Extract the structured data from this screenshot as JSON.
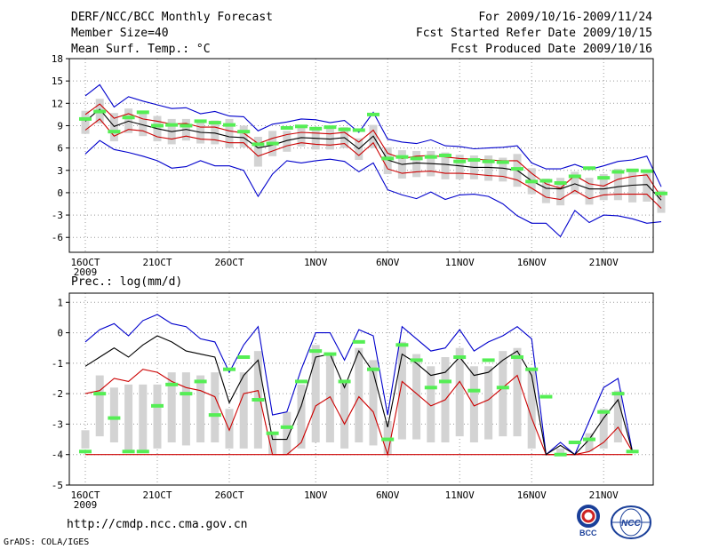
{
  "header": {
    "title": "DERF/NCC/BCC Monthly Forecast",
    "member_size": "Member Size=40",
    "variable": "Mean Surf. Temp.: °C",
    "period": "For 2009/10/16-2009/11/24",
    "start_date": "Fcst Started Refer Date 2009/10/15",
    "produced_date": "Fcst Produced Date 2009/10/16"
  },
  "footer": {
    "url": "http://cmdp.ncc.cma.gov.cn",
    "grads": "GrADS: COLA/IGES",
    "logo_left_text": "BCC",
    "logo_right_text": "NCC"
  },
  "colors": {
    "max": "#0000cc",
    "min": "#0000cc",
    "upper": "#cc0000",
    "lower": "#cc0000",
    "mean": "#000000",
    "bar": "#d3d3d3",
    "obs": "#55ee55"
  },
  "chart_data": [
    {
      "type": "line",
      "title": "Mean Surf. Temp.: °C",
      "x_tick_labels": [
        "16OCT",
        "21OCT",
        "26OCT",
        "1NOV",
        "6NOV",
        "11NOV",
        "16NOV",
        "21NOV"
      ],
      "x_tick_days": [
        0,
        5,
        10,
        16,
        21,
        26,
        31,
        36
      ],
      "x_year_label": "2009",
      "ylim": [
        -8,
        18
      ],
      "yticks": [
        -6,
        -3,
        0,
        3,
        6,
        9,
        12,
        15,
        18
      ],
      "series": [
        {
          "name": "max",
          "values": [
            13,
            14.5,
            11.5,
            12.9,
            12.3,
            11.8,
            11.3,
            11.4,
            10.6,
            10.9,
            10.3,
            10.2,
            8.3,
            9.2,
            9.5,
            9.9,
            9.8,
            9.4,
            9.7,
            8.1,
            10.8,
            7.2,
            6.8,
            6.6,
            7.1,
            6.3,
            6.2,
            5.9,
            6.0,
            6.1,
            6.3,
            4.0,
            3.2,
            3.2,
            3.8,
            3.1,
            3.6,
            4.2,
            4.4,
            4.9,
            0.8
          ]
        },
        {
          "name": "upper",
          "values": [
            10.5,
            11.9,
            10.0,
            10.6,
            9.9,
            9.6,
            9.2,
            9.3,
            8.8,
            8.8,
            8.3,
            8.0,
            6.6,
            7.3,
            7.8,
            8.1,
            8.0,
            7.9,
            8.1,
            6.8,
            8.4,
            5.3,
            4.6,
            4.9,
            5.0,
            4.8,
            4.6,
            4.5,
            4.4,
            4.3,
            4.3,
            2.6,
            1.2,
            0.6,
            2.3,
            1.2,
            0.9,
            1.8,
            2.2,
            2.4,
            -0.6
          ]
        },
        {
          "name": "mean",
          "values": [
            9.6,
            11.2,
            8.9,
            9.6,
            9.1,
            8.6,
            8.2,
            8.5,
            8.1,
            8.0,
            7.5,
            7.4,
            6.0,
            6.4,
            7.0,
            7.4,
            7.3,
            7.2,
            7.4,
            5.9,
            7.6,
            4.4,
            3.8,
            4.0,
            3.9,
            3.8,
            3.6,
            3.4,
            3.4,
            3.3,
            3.0,
            1.6,
            0.6,
            0.5,
            1.2,
            0.5,
            0.5,
            0.8,
            1.0,
            1.1,
            -1.0
          ]
        },
        {
          "name": "lower",
          "values": [
            8.4,
            9.9,
            7.6,
            8.5,
            8.3,
            7.5,
            7.2,
            7.6,
            7.2,
            7.1,
            6.7,
            6.7,
            4.9,
            5.6,
            6.3,
            6.7,
            6.5,
            6.4,
            6.6,
            5.0,
            6.7,
            3.2,
            2.6,
            2.8,
            2.9,
            2.6,
            2.6,
            2.5,
            2.3,
            2.2,
            1.7,
            0.6,
            -0.6,
            -0.9,
            0.3,
            -0.8,
            -0.3,
            -0.2,
            -0.2,
            -0.2,
            -2.1
          ]
        },
        {
          "name": "min",
          "values": [
            5.2,
            7.0,
            5.8,
            5.4,
            4.9,
            4.3,
            3.3,
            3.5,
            4.3,
            3.6,
            3.6,
            3.0,
            -0.5,
            2.5,
            4.3,
            4.0,
            4.3,
            4.5,
            4.2,
            2.8,
            4.0,
            0.4,
            -0.3,
            -0.8,
            0.1,
            -0.9,
            -0.3,
            -0.2,
            -0.5,
            -1.5,
            -3.1,
            -4.1,
            -4.1,
            -5.9,
            -2.4,
            -4.0,
            -3.0,
            -3.1,
            -3.5,
            -4.1,
            -3.9
          ]
        },
        {
          "name": "box_top",
          "values": [
            11.0,
            12.6,
            10.7,
            11.3,
            10.7,
            10.3,
            9.9,
            9.9,
            9.6,
            9.7,
            9.9,
            9.0,
            7.5,
            8.3,
            8.3,
            8.8,
            8.7,
            8.6,
            8.8,
            7.3,
            9.1,
            6.1,
            5.7,
            5.6,
            5.6,
            5.4,
            5.1,
            5.0,
            5.0,
            4.7,
            5.2,
            3.3,
            1.9,
            2.0,
            2.8,
            2.0,
            2.5,
            3.2,
            3.1,
            3.1,
            0.3
          ]
        },
        {
          "name": "box_bottom",
          "values": [
            7.9,
            9.3,
            6.9,
            8.0,
            7.6,
            6.9,
            6.5,
            7.0,
            6.6,
            6.5,
            6.0,
            6.1,
            3.5,
            4.9,
            5.5,
            6.2,
            5.8,
            5.8,
            6.0,
            4.4,
            6.0,
            2.5,
            1.9,
            2.1,
            2.2,
            1.8,
            1.8,
            1.8,
            1.6,
            1.5,
            0.8,
            -0.2,
            -1.4,
            -1.7,
            -0.2,
            -1.6,
            -1.0,
            -1.0,
            -1.3,
            -1.2,
            -2.7
          ]
        },
        {
          "name": "obs",
          "values": [
            9.9,
            10.9,
            8.2,
            10.1,
            10.8,
            9.0,
            9.1,
            9.0,
            9.6,
            9.4,
            9.1,
            8.2,
            6.5,
            6.6,
            8.7,
            8.9,
            8.6,
            8.8,
            8.5,
            8.4,
            10.5,
            4.6,
            4.8,
            4.6,
            4.8,
            5.0,
            4.2,
            4.4,
            4.2,
            4.1,
            3.2,
            1.5,
            1.6,
            1.3,
            2.2,
            3.3,
            2.0,
            2.8,
            3.0,
            2.9,
            -0.1
          ]
        }
      ]
    },
    {
      "type": "line",
      "title": "Prec.: log(mm/d)",
      "x_tick_labels": [
        "16OCT",
        "21OCT",
        "26OCT",
        "1NOV",
        "6NOV",
        "11NOV",
        "16NOV",
        "21NOV"
      ],
      "x_tick_days": [
        0,
        5,
        10,
        16,
        21,
        26,
        31,
        36
      ],
      "x_year_label": "2009",
      "ylim": [
        -5,
        1.3
      ],
      "yticks": [
        -5,
        -4,
        -3,
        -2,
        -1,
        0,
        1
      ],
      "series": [
        {
          "name": "max",
          "values": [
            -0.3,
            0.1,
            0.3,
            -0.1,
            0.4,
            0.6,
            0.3,
            0.2,
            -0.2,
            -0.3,
            -1.3,
            -0.4,
            0.2,
            -2.7,
            -2.6,
            -1.2,
            0.0,
            0.0,
            -0.9,
            0.1,
            -0.1,
            -2.7,
            0.2,
            -0.2,
            -0.6,
            -0.5,
            0.1,
            -0.6,
            -0.3,
            -0.1,
            0.2,
            -0.2,
            -4.0,
            -3.6,
            -4.0,
            -2.9,
            -1.8,
            -1.5,
            -3.9
          ]
        },
        {
          "name": "mean",
          "values": [
            -1.1,
            -0.8,
            -0.5,
            -0.8,
            -0.4,
            -0.1,
            -0.3,
            -0.6,
            -0.7,
            -0.8,
            -2.3,
            -1.4,
            -0.9,
            -3.5,
            -3.5,
            -2.4,
            -0.8,
            -0.7,
            -1.8,
            -0.6,
            -1.3,
            -3.1,
            -0.7,
            -1.0,
            -1.4,
            -1.3,
            -0.8,
            -1.4,
            -1.3,
            -0.9,
            -0.6,
            -1.4,
            -4.0,
            -3.7,
            -4.0,
            -3.5,
            -2.8,
            -2.2,
            -3.9
          ]
        },
        {
          "name": "min",
          "values": [
            -2.0,
            -1.9,
            -1.5,
            -1.6,
            -1.2,
            -1.3,
            -1.6,
            -1.8,
            -1.9,
            -2.1,
            -3.2,
            -2.0,
            -1.9,
            -4.0,
            -4.0,
            -3.6,
            -2.4,
            -2.1,
            -3.0,
            -2.1,
            -2.6,
            -4.0,
            -1.6,
            -2.0,
            -2.4,
            -2.2,
            -1.6,
            -2.4,
            -2.2,
            -1.8,
            -1.4,
            -2.8,
            -4.0,
            -4.0,
            -4.0,
            -3.9,
            -3.6,
            -3.1,
            -3.9
          ]
        },
        {
          "name": "floor",
          "values": [
            -4.0,
            -4.0,
            -4.0,
            -4.0,
            -4.0,
            -4.0,
            -4.0,
            -4.0,
            -4.0,
            -4.0,
            -4.0,
            -4.0,
            -4.0,
            -4.0,
            -4.0,
            -4.0,
            -4.0,
            -4.0,
            -4.0,
            -4.0,
            -4.0,
            -4.0,
            -4.0,
            -4.0,
            -4.0,
            -4.0,
            -4.0,
            -4.0,
            -4.0,
            -4.0,
            -4.0,
            -4.0,
            -4.0,
            -4.0,
            -4.0,
            -4.0,
            -4.0,
            -4.0,
            -4.0
          ]
        },
        {
          "name": "box_top",
          "values": [
            -3.2,
            -1.4,
            -1.8,
            -1.7,
            -1.7,
            -1.7,
            -1.3,
            -1.3,
            -1.4,
            -1.3,
            -2.5,
            -1.3,
            -0.6,
            -3.3,
            -2.6,
            -1.7,
            -0.4,
            -0.7,
            -1.6,
            -0.5,
            -0.9,
            -2.9,
            -0.3,
            -0.7,
            -1.1,
            -0.8,
            -0.5,
            -1.1,
            -1.1,
            -0.6,
            -0.5,
            -1.2,
            -4.0,
            -3.8,
            -4.0,
            -3.3,
            -2.5,
            -1.9,
            -3.9
          ]
        },
        {
          "name": "box_bottom",
          "values": [
            -3.8,
            -3.4,
            -3.6,
            -3.9,
            -3.9,
            -3.8,
            -3.6,
            -3.7,
            -3.6,
            -3.6,
            -3.8,
            -3.8,
            -3.8,
            -4.0,
            -4.0,
            -3.8,
            -3.6,
            -3.6,
            -3.8,
            -3.6,
            -3.7,
            -4.0,
            -3.5,
            -3.5,
            -3.6,
            -3.6,
            -3.4,
            -3.6,
            -3.5,
            -3.4,
            -3.4,
            -3.8,
            -4.0,
            -4.0,
            -4.0,
            -3.9,
            -3.8,
            -3.6,
            -3.9
          ]
        },
        {
          "name": "obs",
          "values": [
            -3.9,
            -2.0,
            -2.8,
            -3.9,
            -3.9,
            -2.4,
            -1.7,
            -2.0,
            -1.6,
            -2.7,
            -1.2,
            -0.8,
            -2.2,
            -3.3,
            -3.1,
            -1.6,
            -0.6,
            -0.7,
            -1.6,
            -0.3,
            -1.2,
            -3.5,
            -0.4,
            -0.9,
            -1.8,
            -1.6,
            -0.8,
            -1.9,
            -0.9,
            -1.8,
            -0.8,
            -1.2,
            -2.1,
            -4.0,
            -3.6,
            -3.5,
            -2.6,
            -2.0,
            -3.9
          ]
        }
      ]
    }
  ]
}
